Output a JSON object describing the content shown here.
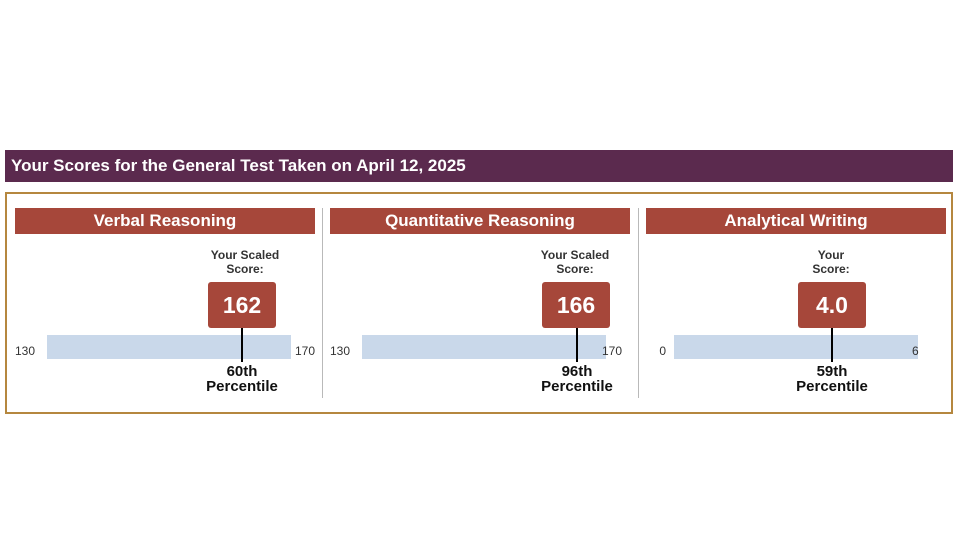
{
  "header": {
    "title": "Your Scores for the General Test Taken on April 12, 2025"
  },
  "sections": [
    {
      "title": "Verbal Reasoning",
      "score_label_line1": "Your Scaled",
      "score_label_line2": "Score:",
      "score": "162",
      "scale_min": "130",
      "scale_max": "170",
      "percentile_rank": "60th",
      "percentile_word": "Percentile"
    },
    {
      "title": "Quantitative Reasoning",
      "score_label_line1": "Your Scaled",
      "score_label_line2": "Score:",
      "score": "166",
      "scale_min": "130",
      "scale_max": "170",
      "percentile_rank": "96th",
      "percentile_word": "Percentile"
    },
    {
      "title": "Analytical Writing",
      "score_label_line1": "Your",
      "score_label_line2": "Score:",
      "score": "4.0",
      "scale_min": "0",
      "scale_max": "6",
      "percentile_rank": "59th",
      "percentile_word": "Percentile"
    }
  ],
  "colors": {
    "header_bg": "#5b2a4e",
    "accent": "#a6473a",
    "frame_border": "#b5873f",
    "scale_fill": "#c9d8ea"
  }
}
